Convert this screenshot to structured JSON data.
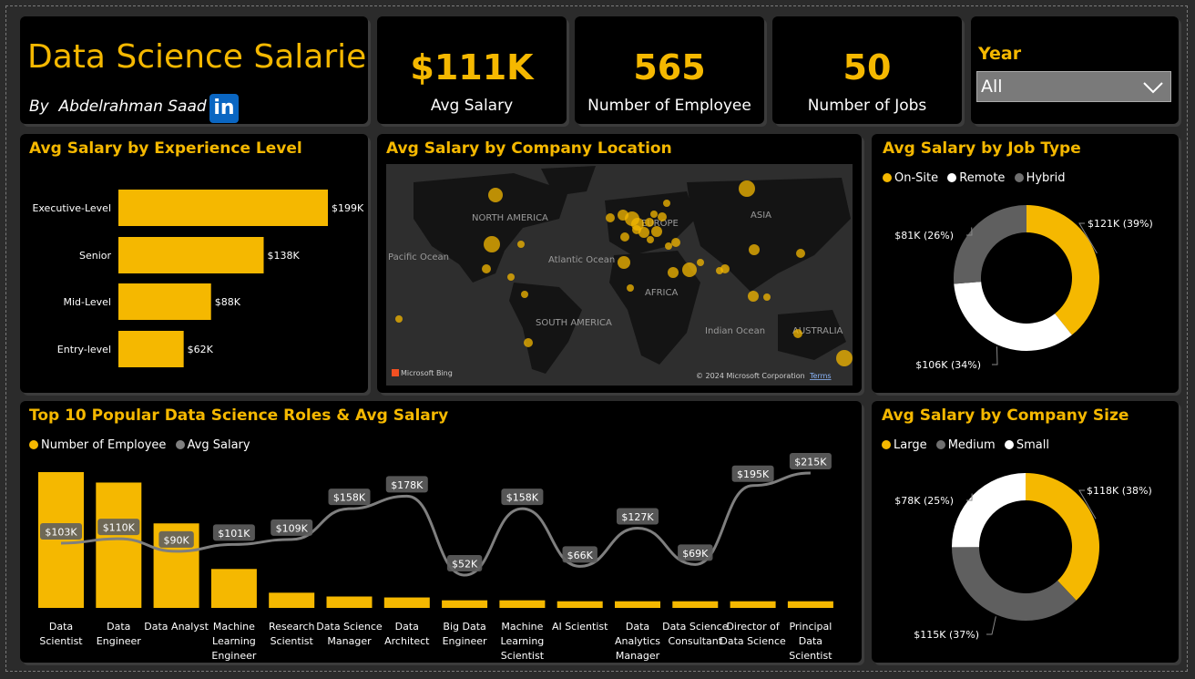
{
  "header": {
    "title": "Data Science Salaries",
    "author": "By  Abdelrahman Saad",
    "linkedin_icon": "linkedin-icon"
  },
  "kpis": [
    {
      "value": "$111K",
      "label": "Avg Salary"
    },
    {
      "value": "565",
      "label": "Number of Employee"
    },
    {
      "value": "50",
      "label": "Number of Jobs"
    }
  ],
  "filter": {
    "label": "Year",
    "selected": "All"
  },
  "colors": {
    "accent": "#f5b800",
    "white": "#ffffff",
    "gray": "#5f5f5f",
    "line": "#7f7f7f"
  },
  "map": {
    "title": "Avg Salary by Company Location",
    "labels": [
      "NORTH AMERICA",
      "EUROPE",
      "ASIA",
      "Pacific Ocean",
      "Atlantic Ocean",
      "AFRICA",
      "SOUTH AMERICA",
      "Indian Ocean",
      "AUSTRALIA"
    ],
    "attribution": "Microsoft Bing",
    "copyright": "© 2024 Microsoft Corporation",
    "terms": "Terms"
  },
  "chart_data": [
    {
      "type": "bar",
      "orientation": "horizontal",
      "title": "Avg Salary by Experience Level",
      "categories": [
        "Executive-Level",
        "Senior",
        "Mid-Level",
        "Entry-level"
      ],
      "values": [
        199,
        138,
        88,
        62
      ],
      "labels": [
        "$199K",
        "$138K",
        "$88K",
        "$62K"
      ],
      "unit": "K USD"
    },
    {
      "type": "pie",
      "donut": true,
      "title": "Avg Salary by Job Type",
      "legend": [
        "On-Site",
        "Remote",
        "Hybrid"
      ],
      "values": [
        121,
        106,
        81
      ],
      "labels": [
        "$121K (39%)",
        "$106K (34%)",
        "$81K (26%)"
      ],
      "colors": [
        "#f5b800",
        "#ffffff",
        "#5f5f5f"
      ]
    },
    {
      "type": "bar",
      "combo": "bar+line",
      "title": "Top 10 Popular Data Science Roles & Avg Salary",
      "legend": [
        "Number of Employee",
        "Avg Salary"
      ],
      "categories": [
        "Data Scientist",
        "Data Engineer",
        "Data Analyst",
        "Machine Learning Engineer",
        "Research Scientist",
        "Data Science Manager",
        "Data Architect",
        "Big Data Engineer",
        "Machine Learning Scientist",
        "AI Scientist",
        "Data Analytics Manager",
        "Data Science Consultant",
        "Director of Data Science",
        "Principal Data Scientist"
      ],
      "series": [
        {
          "name": "Number of Employee",
          "values": [
            143,
            132,
            89,
            41,
            16,
            12,
            11,
            8,
            8,
            7,
            7,
            7,
            7,
            7
          ]
        },
        {
          "name": "Avg Salary",
          "values": [
            103,
            110,
            90,
            101,
            109,
            158,
            178,
            52,
            158,
            66,
            127,
            69,
            195,
            215
          ],
          "labels": [
            "$103K",
            "$110K",
            "$90K",
            "$101K",
            "$109K",
            "$158K",
            "$178K",
            "$52K",
            "$158K",
            "$66K",
            "$127K",
            "$69K",
            "$195K",
            "$215K"
          ]
        }
      ]
    },
    {
      "type": "pie",
      "donut": true,
      "title": "Avg Salary by Company Size",
      "legend": [
        "Large",
        "Medium",
        "Small"
      ],
      "values": [
        118,
        115,
        78
      ],
      "labels": [
        "$118K (38%)",
        "$115K (37%)",
        "$78K (25%)"
      ],
      "colors": [
        "#f5b800",
        "#5f5f5f",
        "#ffffff"
      ]
    }
  ]
}
